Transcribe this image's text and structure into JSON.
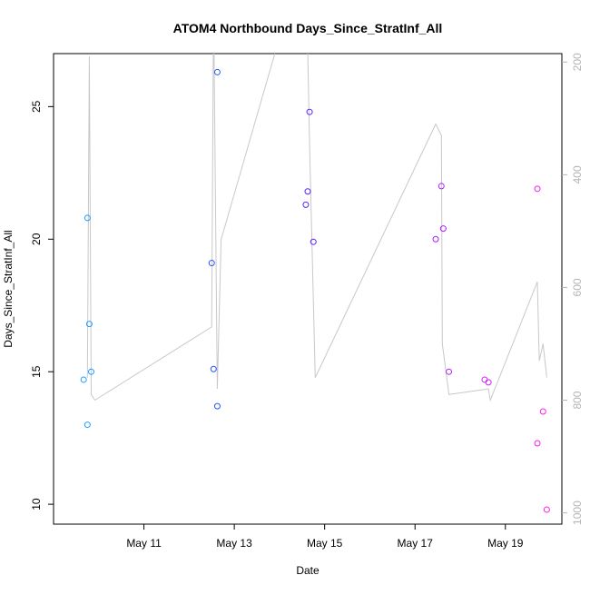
{
  "chart_data": {
    "type": "scatter",
    "title": "ATOM4 Northbound Days_Since_StratInf_All",
    "xlabel": "Date",
    "ylabel": "Days_Since_StratInf_All",
    "xlim": [
      "2016-05-09T00:00",
      "2016-05-20T06:00"
    ],
    "ylim": [
      9.25,
      27
    ],
    "x_ticks": [
      {
        "x": "2016-05-11T00:00",
        "label": "May 11"
      },
      {
        "x": "2016-05-13T00:00",
        "label": "May 13"
      },
      {
        "x": "2016-05-15T00:00",
        "label": "May 15"
      },
      {
        "x": "2016-05-17T00:00",
        "label": "May 17"
      },
      {
        "x": "2016-05-19T00:00",
        "label": "May 19"
      }
    ],
    "y_ticks": [
      10,
      15,
      20,
      25
    ],
    "y2_ticks": [
      200,
      400,
      600,
      800,
      1000
    ],
    "y2lim": [
      185,
      1020
    ],
    "y2_reversed": true,
    "grid": false,
    "legend": "none",
    "point_color_gradient": [
      "#1e9bff",
      "#1e5cff",
      "#5a1eff",
      "#a51eff",
      "#ff1ee6"
    ],
    "line_color": "#c8c8c8",
    "points": [
      {
        "x": "2016-05-09T16:00",
        "y": 14.7
      },
      {
        "x": "2016-05-09T18:00",
        "y": 20.8
      },
      {
        "x": "2016-05-09T18:00",
        "y": 13.0
      },
      {
        "x": "2016-05-09T19:00",
        "y": 16.8
      },
      {
        "x": "2016-05-09T20:00",
        "y": 15.0
      },
      {
        "x": "2016-05-12T12:00",
        "y": 19.1
      },
      {
        "x": "2016-05-12T13:00",
        "y": 15.1
      },
      {
        "x": "2016-05-12T15:00",
        "y": 13.7
      },
      {
        "x": "2016-05-12T15:00",
        "y": 26.3
      },
      {
        "x": "2016-05-14T14:00",
        "y": 21.3
      },
      {
        "x": "2016-05-14T15:00",
        "y": 21.8
      },
      {
        "x": "2016-05-14T16:00",
        "y": 24.8
      },
      {
        "x": "2016-05-14T18:00",
        "y": 19.9
      },
      {
        "x": "2016-05-17T11:00",
        "y": 20.0
      },
      {
        "x": "2016-05-17T14:00",
        "y": 22.0
      },
      {
        "x": "2016-05-17T15:00",
        "y": 20.4
      },
      {
        "x": "2016-05-17T18:00",
        "y": 15.0
      },
      {
        "x": "2016-05-18T13:00",
        "y": 14.7
      },
      {
        "x": "2016-05-18T15:00",
        "y": 14.6
      },
      {
        "x": "2016-05-19T17:00",
        "y": 21.9
      },
      {
        "x": "2016-05-19T17:00",
        "y": 12.3
      },
      {
        "x": "2016-05-19T20:00",
        "y": 13.5
      },
      {
        "x": "2016-05-19T22:00",
        "y": 9.8
      }
    ],
    "line_series_y2": [
      {
        "x": "2016-05-09T18:00",
        "y": 760
      },
      {
        "x": "2016-05-09T19:00",
        "y": 190
      },
      {
        "x": "2016-05-09T20:00",
        "y": 790
      },
      {
        "x": "2016-05-09T22:00",
        "y": 800
      },
      {
        "x": "2016-05-12T12:00",
        "y": 670
      },
      {
        "x": "2016-05-12T13:00",
        "y": 100
      },
      {
        "x": "2016-05-12T15:00",
        "y": 780
      },
      {
        "x": "2016-05-12T17:00",
        "y": 515
      },
      {
        "x": "2016-05-13T22:00",
        "y": 180
      },
      {
        "x": "2016-05-14T15:00",
        "y": 180
      },
      {
        "x": "2016-05-14T16:00",
        "y": 350
      },
      {
        "x": "2016-05-14T19:00",
        "y": 760
      },
      {
        "x": "2016-05-17T11:00",
        "y": 310
      },
      {
        "x": "2016-05-17T14:00",
        "y": 330
      },
      {
        "x": "2016-05-17T14:30",
        "y": 700
      },
      {
        "x": "2016-05-17T18:00",
        "y": 790
      },
      {
        "x": "2016-05-18T15:00",
        "y": 780
      },
      {
        "x": "2016-05-18T16:00",
        "y": 800
      },
      {
        "x": "2016-05-19T17:00",
        "y": 590
      },
      {
        "x": "2016-05-19T18:00",
        "y": 730
      },
      {
        "x": "2016-05-19T20:00",
        "y": 700
      },
      {
        "x": "2016-05-19T22:00",
        "y": 760
      }
    ]
  }
}
